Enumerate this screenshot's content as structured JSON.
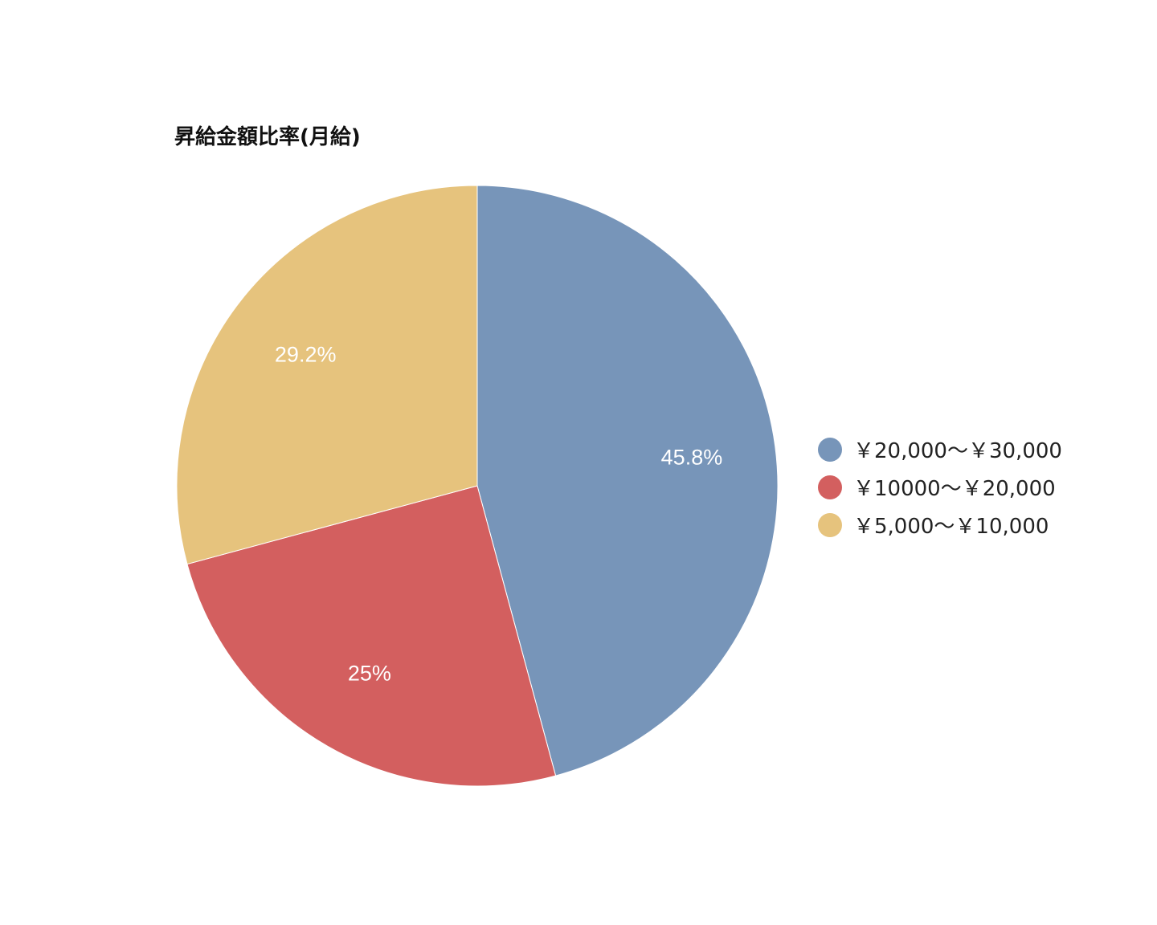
{
  "chart_data": {
    "type": "pie",
    "title": "昇給金額比率(月給)",
    "categories": [
      "￥20,000〜￥30,000",
      "￥10000〜￥20,000",
      "￥5,000〜￥10,000"
    ],
    "values": [
      45.8,
      25,
      29.2
    ],
    "data_labels": [
      "45.8%",
      "25%",
      "29.2%"
    ],
    "colors": [
      "#7795b9",
      "#d35f5f",
      "#e6c37d"
    ],
    "legend_position": "right",
    "start_angle": "top",
    "direction": "clockwise"
  }
}
